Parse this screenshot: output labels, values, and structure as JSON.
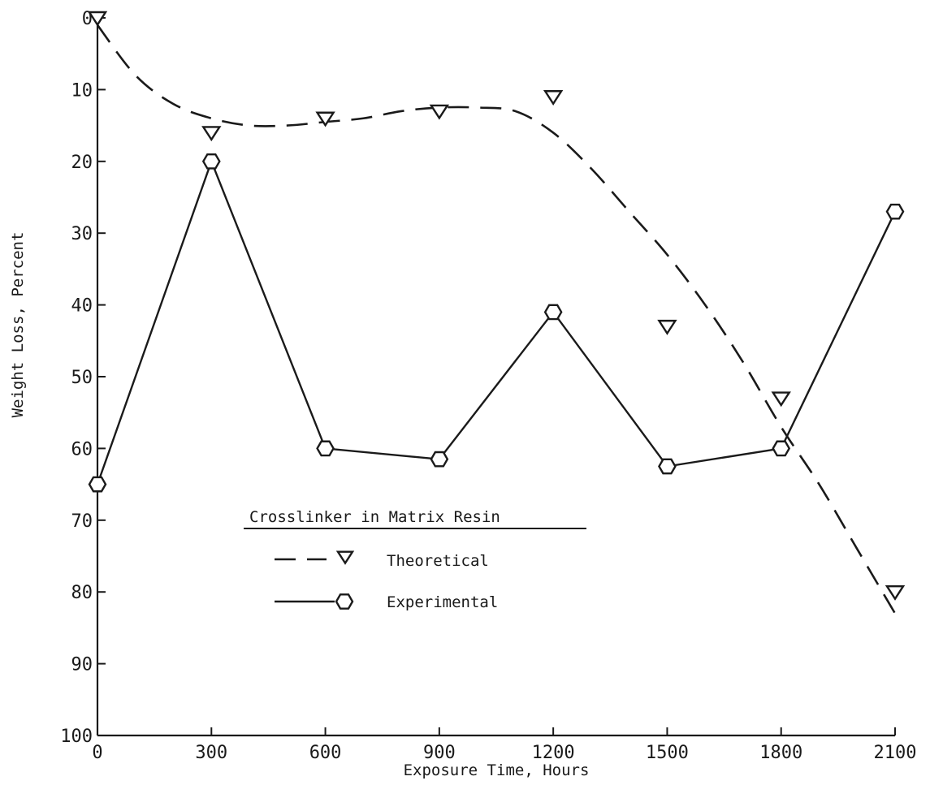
{
  "chart_data": {
    "type": "line",
    "title": "",
    "xlabel": "Exposure Time, Hours",
    "ylabel": "Weight Loss, Percent",
    "xlim": [
      0,
      2100
    ],
    "ylim": [
      0,
      100
    ],
    "y_inverted": true,
    "x_ticks": [
      0,
      300,
      600,
      900,
      1200,
      1500,
      1800,
      2100
    ],
    "x_tick_labels": [
      "0",
      "300",
      "600",
      "900",
      "1200",
      "1500",
      "1800",
      "2100"
    ],
    "y_ticks": [
      0,
      10,
      20,
      30,
      40,
      50,
      60,
      70,
      80,
      90,
      100
    ],
    "y_tick_labels": [
      "0",
      "10",
      "20",
      "30",
      "40",
      "50",
      "60",
      "70",
      "80",
      "90",
      "100"
    ],
    "grid": false,
    "legend": {
      "title": "Crosslinker in Matrix Resin",
      "placement": "center-left"
    },
    "series": [
      {
        "name": "Theoretical",
        "marker": "triangle-down",
        "line_style": "dashed",
        "color": "#1a1a1a",
        "points": [
          {
            "x": 0,
            "y": 0
          },
          {
            "x": 300,
            "y": 16
          },
          {
            "x": 600,
            "y": 14
          },
          {
            "x": 900,
            "y": 13
          },
          {
            "x": 1200,
            "y": 11
          },
          {
            "x": 1500,
            "y": 43
          },
          {
            "x": 1800,
            "y": 53
          },
          {
            "x": 2100,
            "y": 80
          }
        ],
        "fit_curve": [
          {
            "x": 0,
            "y": 1
          },
          {
            "x": 100,
            "y": 8
          },
          {
            "x": 200,
            "y": 12
          },
          {
            "x": 300,
            "y": 14
          },
          {
            "x": 400,
            "y": 15
          },
          {
            "x": 500,
            "y": 15
          },
          {
            "x": 600,
            "y": 14.5
          },
          {
            "x": 700,
            "y": 14
          },
          {
            "x": 800,
            "y": 13
          },
          {
            "x": 900,
            "y": 12.5
          },
          {
            "x": 1000,
            "y": 12.5
          },
          {
            "x": 1100,
            "y": 13
          },
          {
            "x": 1200,
            "y": 16
          },
          {
            "x": 1300,
            "y": 21
          },
          {
            "x": 1400,
            "y": 27
          },
          {
            "x": 1500,
            "y": 33
          },
          {
            "x": 1600,
            "y": 40
          },
          {
            "x": 1700,
            "y": 48
          },
          {
            "x": 1800,
            "y": 57
          },
          {
            "x": 1900,
            "y": 65
          },
          {
            "x": 2000,
            "y": 74
          },
          {
            "x": 2100,
            "y": 83
          }
        ]
      },
      {
        "name": "Experimental",
        "marker": "hexagon",
        "line_style": "solid",
        "color": "#1a1a1a",
        "points": [
          {
            "x": 0,
            "y": 65
          },
          {
            "x": 300,
            "y": 20
          },
          {
            "x": 600,
            "y": 60
          },
          {
            "x": 900,
            "y": 61.5
          },
          {
            "x": 1200,
            "y": 41
          },
          {
            "x": 1500,
            "y": 62.5
          },
          {
            "x": 1800,
            "y": 60
          },
          {
            "x": 2100,
            "y": 27
          }
        ]
      }
    ]
  }
}
